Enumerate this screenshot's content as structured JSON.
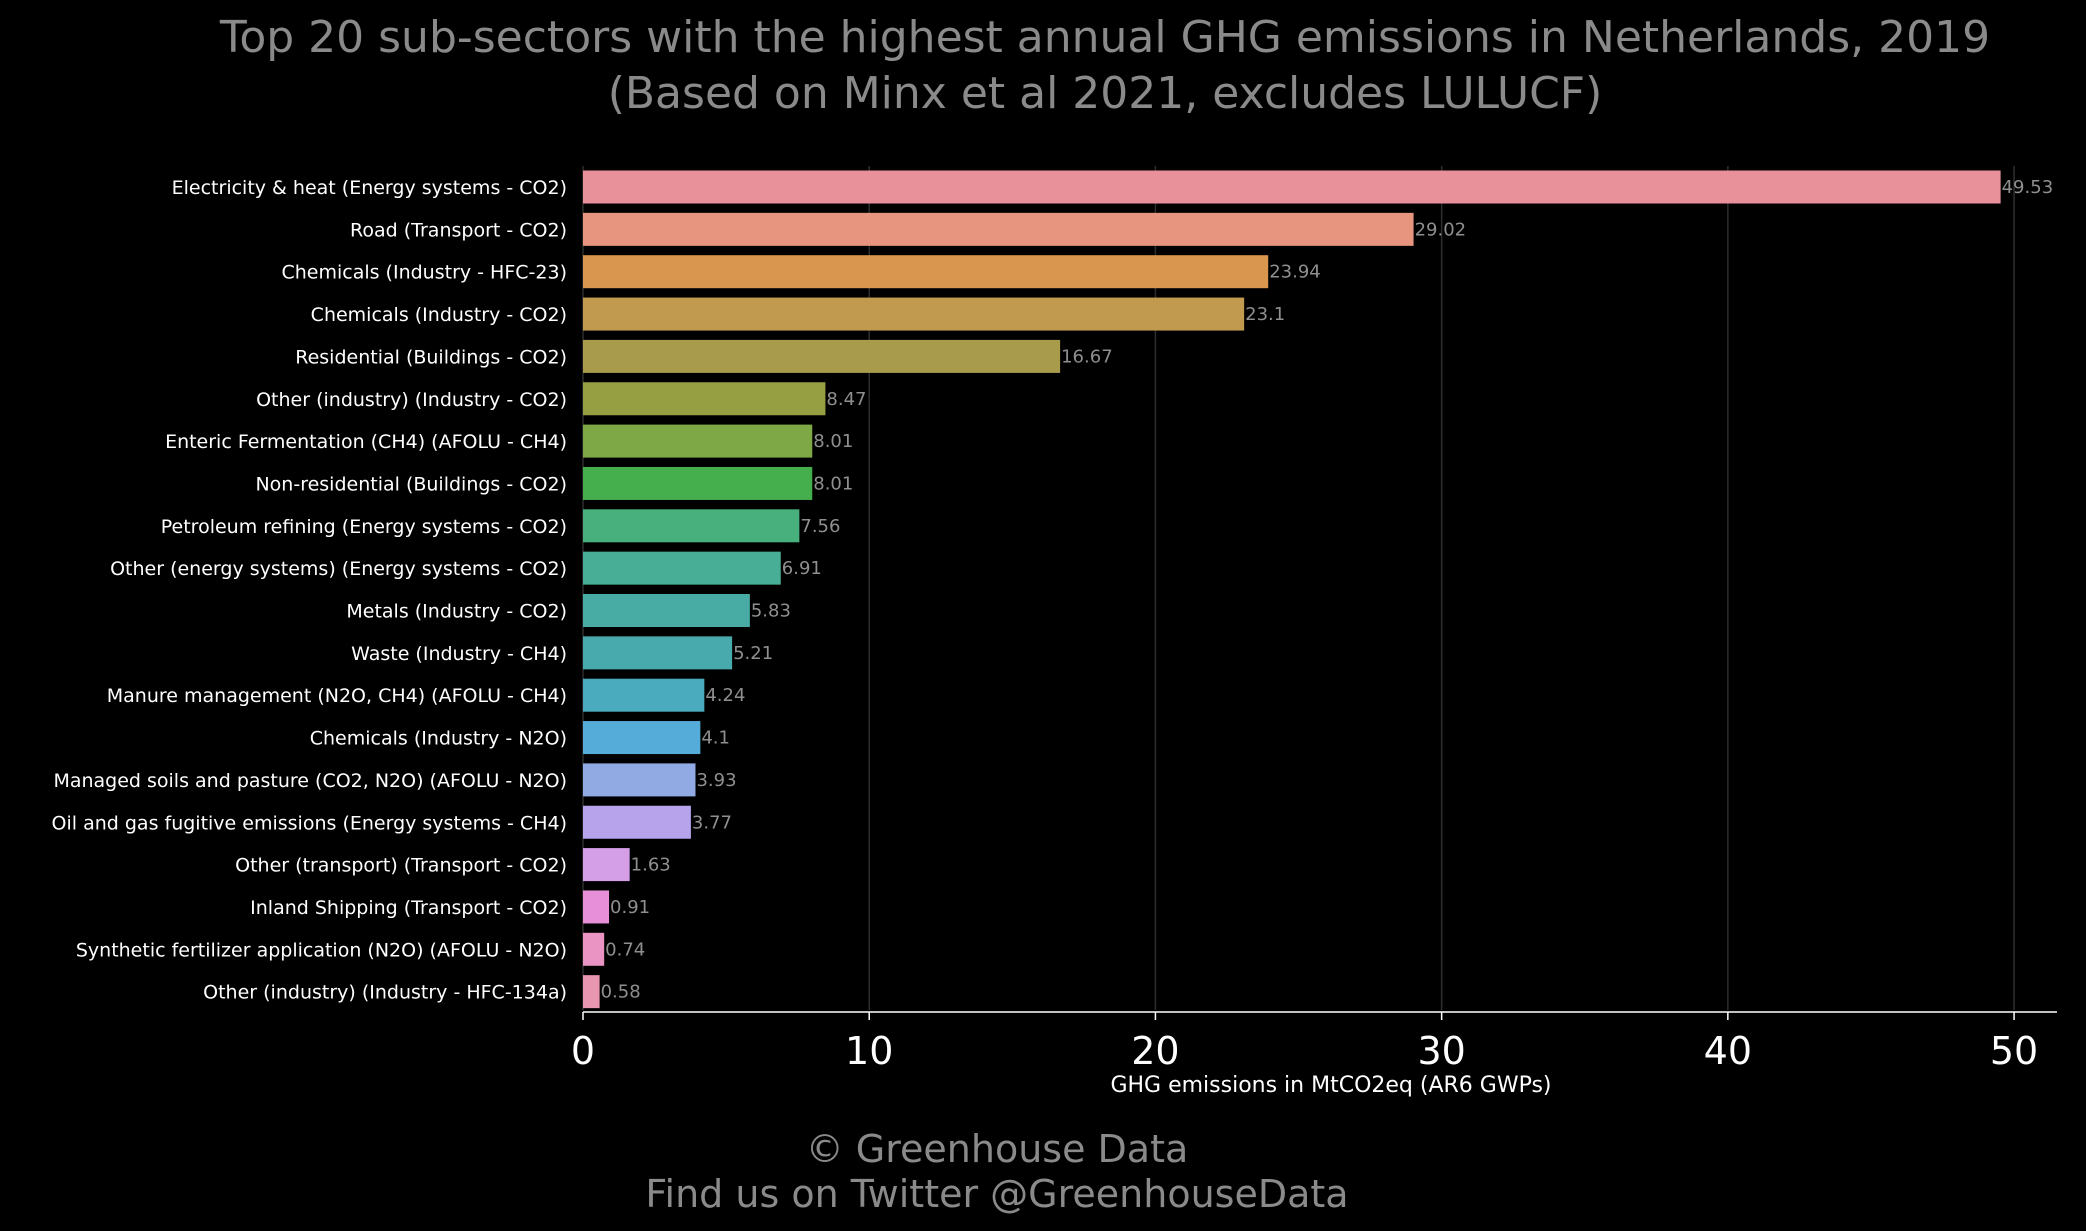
{
  "chart_data": {
    "type": "bar",
    "orientation": "horizontal",
    "title": "Top 20 sub-sectors with the highest annual GHG emissions in Netherlands, 2019",
    "subtitle": "(Based on Minx et al 2021, excludes LULUCF)",
    "xlabel": "GHG emissions in MtCO2eq (AR6 GWPs)",
    "ylabel": "",
    "xlim": [
      0,
      51.5
    ],
    "xticks": [
      0,
      10,
      20,
      30,
      40,
      50
    ],
    "grid": "vertical",
    "categories": [
      "Electricity & heat (Energy systems - CO2)",
      "Road (Transport - CO2)",
      "Chemicals (Industry - HFC-23)",
      "Chemicals (Industry - CO2)",
      "Residential (Buildings - CO2)",
      "Other (industry) (Industry - CO2)",
      "Enteric Fermentation (CH4) (AFOLU - CH4)",
      "Non-residential (Buildings - CO2)",
      "Petroleum refining (Energy systems - CO2)",
      "Other (energy systems) (Energy systems - CO2)",
      "Metals (Industry - CO2)",
      "Waste (Industry - CH4)",
      "Manure management (N2O, CH4) (AFOLU - CH4)",
      "Chemicals (Industry - N2O)",
      "Managed soils and pasture (CO2, N2O) (AFOLU - N2O)",
      "Oil and gas fugitive emissions (Energy systems - CH4)",
      "Other (transport) (Transport - CO2)",
      "Inland Shipping (Transport - CO2)",
      "Synthetic fertilizer application (N2O) (AFOLU - N2O)",
      "Other (industry) (Industry - HFC-134a)"
    ],
    "values": [
      49.53,
      29.02,
      23.94,
      23.1,
      16.67,
      8.47,
      8.01,
      8.01,
      7.56,
      6.91,
      5.83,
      5.21,
      4.24,
      4.1,
      3.93,
      3.77,
      1.63,
      0.91,
      0.74,
      0.58
    ],
    "value_labels": [
      "49.53",
      "29.02",
      "23.94",
      "23.1",
      "16.67",
      "8.47",
      "8.01",
      "8.01",
      "7.56",
      "6.91",
      "5.83",
      "5.21",
      "4.24",
      "4.1",
      "3.93",
      "3.77",
      "1.63",
      "0.91",
      "0.74",
      "0.58"
    ],
    "colors": [
      "#e8919b",
      "#e8957f",
      "#d8964f",
      "#c19a50",
      "#a89c4c",
      "#96a043",
      "#7ea845",
      "#45af4e",
      "#47b07d",
      "#48ae96",
      "#48aca4",
      "#49aaad",
      "#4aabbf",
      "#55acd8",
      "#92aae4",
      "#b6a3ec",
      "#d59fe8",
      "#e88fd9",
      "#e994c3",
      "#e996b0"
    ]
  },
  "footer": {
    "line1": "© Greenhouse Data",
    "line2": "Find us on Twitter @GreenhouseData"
  }
}
